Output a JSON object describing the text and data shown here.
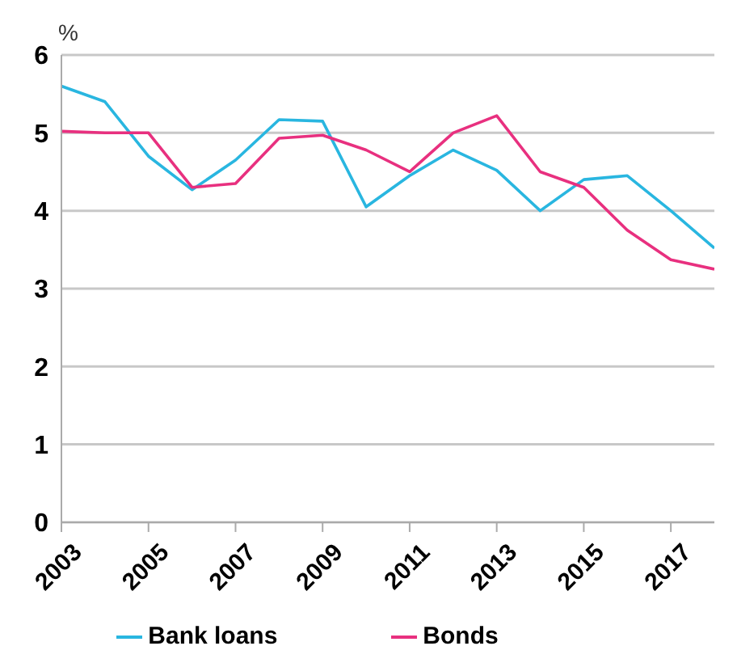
{
  "chart_data": {
    "type": "line",
    "ylabel": "%",
    "x": [
      2003,
      2004,
      2005,
      2006,
      2007,
      2008,
      2009,
      2010,
      2011,
      2012,
      2013,
      2014,
      2015,
      2016,
      2017,
      2018
    ],
    "series": [
      {
        "name": "Bank loans",
        "color": "#29b6e0",
        "values": [
          5.6,
          5.4,
          4.7,
          4.27,
          4.65,
          5.17,
          5.15,
          4.05,
          4.45,
          4.78,
          4.52,
          4.0,
          4.4,
          4.45,
          4.0,
          3.52
        ]
      },
      {
        "name": "Bonds",
        "color": "#e8307f",
        "values": [
          5.02,
          5.0,
          5.0,
          4.3,
          4.35,
          4.93,
          4.97,
          4.78,
          4.5,
          5.0,
          5.22,
          4.5,
          4.3,
          3.75,
          3.37,
          3.25
        ]
      }
    ],
    "xlim": [
      2003,
      2018
    ],
    "xticks": [
      2003,
      2005,
      2007,
      2009,
      2011,
      2013,
      2015,
      2017
    ],
    "ylim": [
      0,
      6
    ],
    "yticks": [
      0,
      1,
      2,
      3,
      4,
      5,
      6
    ],
    "grid": "y",
    "legend": "bottom",
    "marker": "none",
    "line_style": "solid"
  }
}
